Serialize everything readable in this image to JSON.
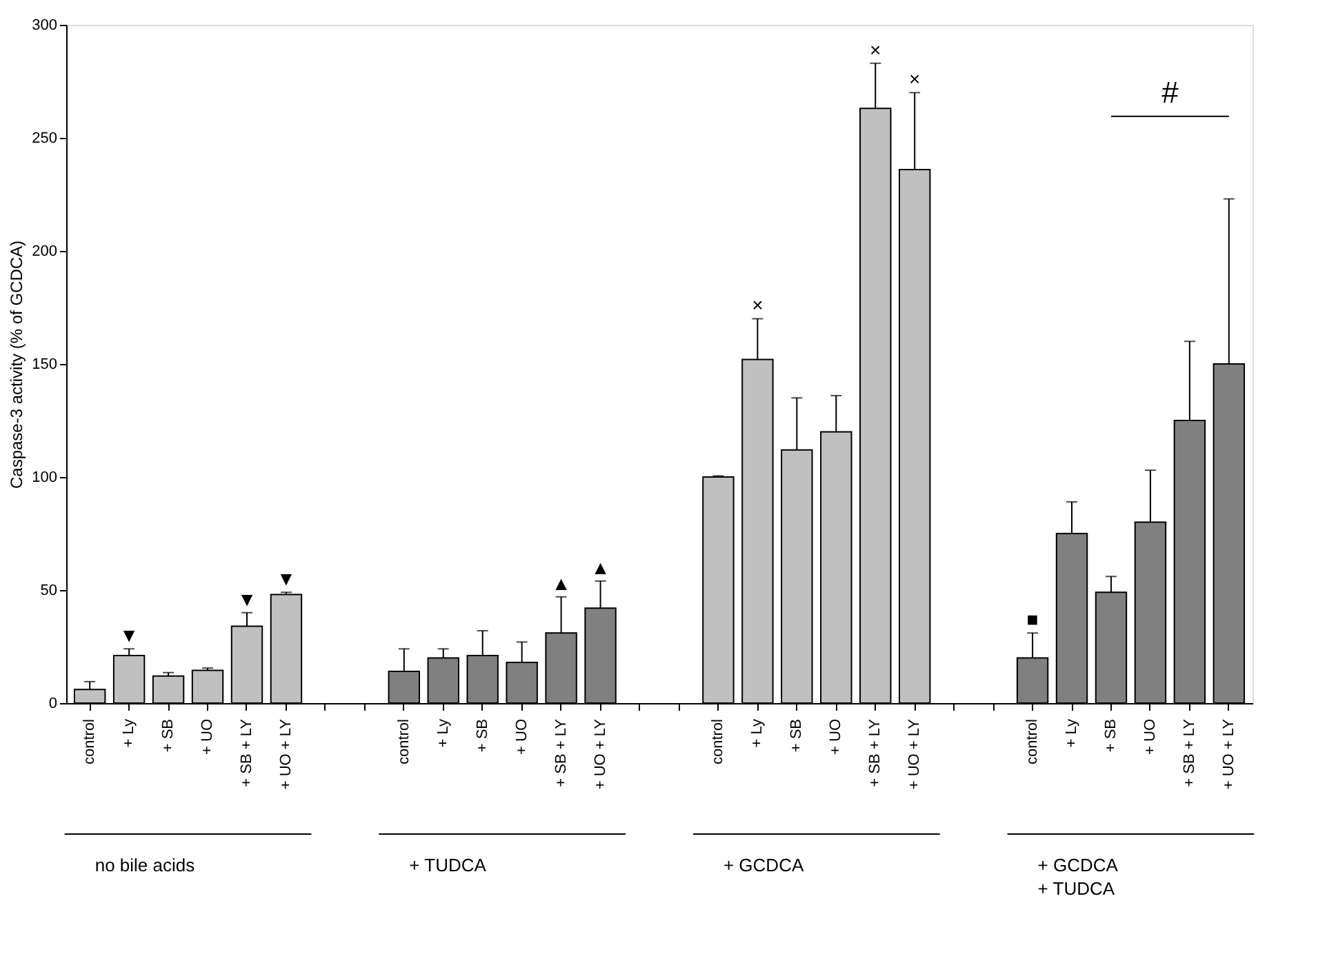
{
  "chart_data": {
    "type": "bar",
    "ylabel": "Caspase-3 activity (% of GCDCA)",
    "categories": [
      "control",
      "+ Ly",
      "+ SB",
      "+ UO",
      "+ SB + LY",
      "+ UO + LY",
      null,
      null,
      "control",
      "+ Ly",
      "+ SB",
      "+ UO",
      "+ SB + LY",
      "+ UO + LY",
      null,
      null,
      "control",
      "+ Ly",
      "+ SB",
      "+ UO",
      "+ SB + LY",
      "+ UO + LY",
      null,
      null,
      "control",
      "+ Ly",
      "+ SB",
      "+ UO",
      "+ SB + LY",
      "+ UO + LY"
    ],
    "values": [
      6,
      21,
      12,
      14.5,
      34,
      48,
      null,
      null,
      14,
      20,
      21,
      18,
      31,
      42,
      null,
      null,
      100,
      152,
      112,
      120,
      263,
      236,
      null,
      null,
      20,
      75,
      49,
      80,
      125,
      150
    ],
    "errors": [
      [
        6,
        9.5
      ],
      [
        21,
        24
      ],
      [
        12,
        13.5
      ],
      [
        14.5,
        15.5
      ],
      [
        34,
        40
      ],
      [
        48,
        49
      ],
      null,
      null,
      [
        14,
        24
      ],
      [
        20,
        24
      ],
      [
        21,
        32
      ],
      [
        18,
        27
      ],
      [
        31,
        47
      ],
      [
        42,
        54
      ],
      null,
      null,
      [
        100,
        100.5
      ],
      [
        152,
        170
      ],
      [
        112,
        135
      ],
      [
        120,
        136
      ],
      [
        263,
        283
      ],
      [
        236,
        270
      ],
      null,
      null,
      [
        20,
        31
      ],
      [
        75,
        89
      ],
      [
        49,
        56
      ],
      [
        80,
        103
      ],
      [
        125,
        160
      ],
      [
        150,
        223
      ]
    ],
    "colors": [
      "#c0c0c0",
      "#c0c0c0",
      "#c0c0c0",
      "#c0c0c0",
      "#c0c0c0",
      "#c0c0c0",
      null,
      null,
      "#808080",
      "#808080",
      "#808080",
      "#808080",
      "#808080",
      "#808080",
      null,
      null,
      "#c0c0c0",
      "#c0c0c0",
      "#c0c0c0",
      "#c0c0c0",
      "#c0c0c0",
      "#c0c0c0",
      null,
      null,
      "#808080",
      "#808080",
      "#808080",
      "#808080",
      "#808080",
      "#808080"
    ],
    "ylim": [
      0,
      300
    ],
    "yticks": [
      0,
      50,
      100,
      150,
      200,
      250,
      300
    ],
    "grid": false,
    "annotations": [
      "no bile acids",
      "+ TUDCA",
      "+ GCDCA",
      "+ GCDCA\n+ TUDCA",
      "#",
      "▼",
      "▼",
      "▼",
      "▲",
      "▲",
      "×",
      "×",
      "×",
      "■"
    ]
  }
}
